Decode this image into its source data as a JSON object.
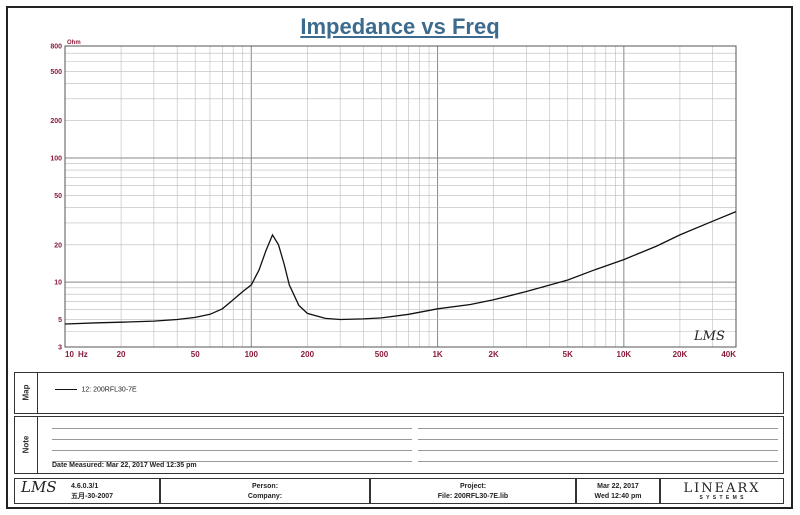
{
  "chart_data": {
    "type": "line",
    "title": "Impedance vs Freq",
    "y_unit": "Ohm",
    "x_unit": "Hz",
    "x_scale": "log",
    "y_scale": "log",
    "xlim": [
      10,
      40000
    ],
    "ylim": [
      3,
      800
    ],
    "grid": true,
    "x_ticks": [
      {
        "value": 10,
        "label": "10"
      },
      {
        "value": 20,
        "label": "20"
      },
      {
        "value": 50,
        "label": "50"
      },
      {
        "value": 100,
        "label": "100"
      },
      {
        "value": 200,
        "label": "200"
      },
      {
        "value": 500,
        "label": "500"
      },
      {
        "value": 1000,
        "label": "1K"
      },
      {
        "value": 2000,
        "label": "2K"
      },
      {
        "value": 5000,
        "label": "5K"
      },
      {
        "value": 10000,
        "label": "10K"
      },
      {
        "value": 20000,
        "label": "20K"
      },
      {
        "value": 40000,
        "label": "40K"
      }
    ],
    "y_ticks": [
      {
        "value": 800,
        "label": "800"
      },
      {
        "value": 500,
        "label": "500"
      },
      {
        "value": 200,
        "label": "200"
      },
      {
        "value": 100,
        "label": "100"
      },
      {
        "value": 50,
        "label": "50"
      },
      {
        "value": 20,
        "label": "20"
      },
      {
        "value": 10,
        "label": "10"
      },
      {
        "value": 5,
        "label": "5"
      },
      {
        "value": 3,
        "label": "3"
      }
    ],
    "series": [
      {
        "name": "12: 200RFL30-7E",
        "color": "#111111",
        "x": [
          10,
          15,
          20,
          30,
          40,
          50,
          60,
          70,
          80,
          90,
          100,
          110,
          120,
          130,
          140,
          150,
          160,
          180,
          200,
          250,
          300,
          400,
          500,
          700,
          1000,
          1500,
          2000,
          3000,
          5000,
          7000,
          10000,
          15000,
          20000,
          30000,
          40000
        ],
        "y": [
          4.6,
          4.7,
          4.75,
          4.85,
          5.0,
          5.2,
          5.5,
          6.1,
          7.2,
          8.4,
          9.5,
          12.5,
          18,
          24,
          20,
          14,
          9.5,
          6.5,
          5.6,
          5.1,
          5.0,
          5.05,
          5.15,
          5.5,
          6.1,
          6.6,
          7.2,
          8.4,
          10.4,
          12.6,
          15.2,
          19.5,
          24,
          31,
          37
        ]
      }
    ]
  },
  "map_panel": {
    "label": "Map",
    "legend_entry": "12: 200RFL30-7E"
  },
  "note_panel": {
    "label": "Note",
    "date_measured": "Date Measured: Mar 22, 2017  Wed 12:35 pm"
  },
  "footer": {
    "logo_text": "LMS",
    "version": "4.6.0.3/1",
    "version_date": "五月-30-2007",
    "person_label": "Person:",
    "company_label": "Company:",
    "project_label": "Project:",
    "file_label": "File: 200RFL30-7E.lib",
    "date_line1": "Mar 22, 2017",
    "date_line2": "Wed 12:40 pm",
    "brand": "LINEARX",
    "brand_sub": "S Y S T E M S"
  },
  "chart_watermark": "LMS"
}
